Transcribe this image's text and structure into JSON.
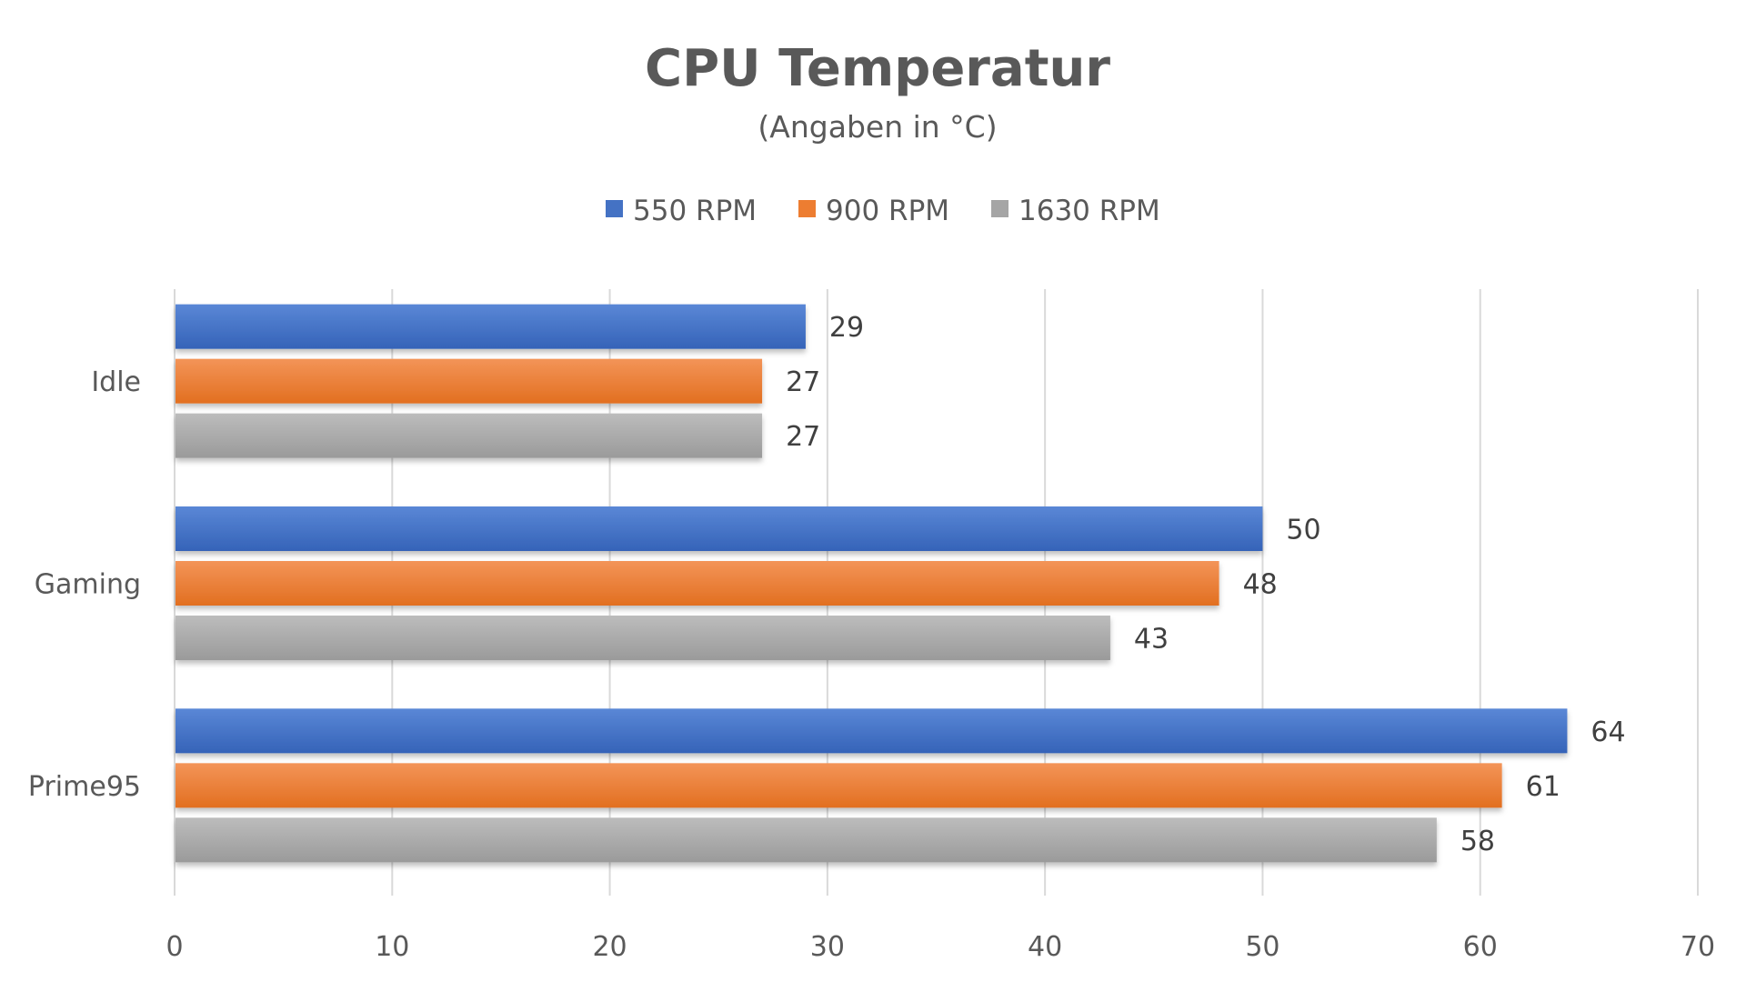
{
  "chart_data": {
    "type": "bar",
    "orientation": "horizontal",
    "title": "CPU Temperatur",
    "subtitle": "(Angaben in °C)",
    "categories": [
      "Idle",
      "Gaming",
      "Prime95"
    ],
    "series": [
      {
        "name": "550 RPM",
        "color": "#4472C4",
        "values": [
          29,
          50,
          64
        ]
      },
      {
        "name": "900 RPM",
        "color": "#ED7D31",
        "values": [
          27,
          48,
          61
        ]
      },
      {
        "name": "1630 RPM",
        "color": "#A5A5A5",
        "values": [
          27,
          43,
          58
        ]
      }
    ],
    "xlim": [
      0,
      70
    ],
    "xticks": [
      "0",
      "10",
      "20",
      "30",
      "40",
      "50",
      "60",
      "70"
    ],
    "grid": true,
    "legend": "top",
    "data_labels": true
  }
}
